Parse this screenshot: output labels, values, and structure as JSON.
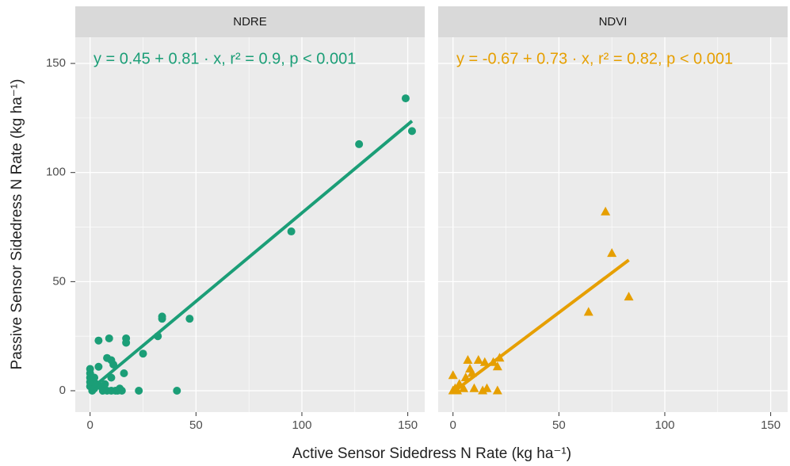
{
  "chart_data": {
    "type": "scatter",
    "x_label": "Active Sensor Sidedress N Rate (kg ha⁻¹)",
    "y_label": "Passive Sensor Sidedress N Rate (kg ha⁻¹)",
    "xlim": [
      -7,
      158
    ],
    "ylim": [
      -9.8,
      162
    ],
    "xticks": [
      0,
      50,
      100,
      150
    ],
    "yticks": [
      0,
      50,
      100,
      150
    ],
    "minor_xticks": [
      25,
      75,
      125
    ],
    "minor_yticks": [
      25,
      75,
      125
    ],
    "grid": true,
    "facets": [
      {
        "title": "NDRE",
        "color": "#1b9e77",
        "marker": "circle",
        "annotation": "y = 0.45 + 0.81 · x,  r² = 0.9, p < 0.001",
        "x": [
          1,
          0,
          0,
          0,
          0,
          0,
          2,
          3,
          4,
          4,
          6,
          8,
          8,
          9,
          10,
          10,
          10,
          12,
          13,
          14,
          15,
          16,
          17,
          17,
          23,
          25,
          32,
          34,
          34,
          41,
          47,
          95,
          127,
          149,
          152,
          2,
          5,
          7,
          11
        ],
        "y": [
          0,
          2,
          4,
          6,
          8,
          10,
          1,
          3,
          11,
          23,
          0,
          0,
          15,
          24,
          0,
          6,
          14,
          0,
          0,
          1,
          0,
          8,
          22,
          24,
          0,
          17,
          25,
          33,
          34,
          0,
          33,
          73,
          113,
          134,
          119,
          6,
          2,
          3,
          12
        ],
        "fit_x": [
          0,
          152
        ],
        "fit_y": [
          0.45,
          123.6
        ]
      },
      {
        "title": "NDVI",
        "color": "#e69f00",
        "marker": "triangle",
        "annotation": "y = -0.67 + 0.73 · x,  r² = 0.82, p < 0.001",
        "x": [
          0,
          0,
          1,
          2,
          3,
          5,
          6,
          7,
          8,
          9,
          10,
          12,
          14,
          15,
          16,
          19,
          21,
          21,
          22,
          64,
          72,
          75,
          83
        ],
        "y": [
          0,
          7,
          1,
          0,
          3,
          1,
          6,
          14,
          10,
          8,
          1,
          14,
          0,
          13,
          1,
          13,
          0,
          11,
          15,
          36,
          82,
          63,
          43
        ],
        "fit_x": [
          0,
          83
        ],
        "fit_y": [
          -0.67,
          59.9
        ]
      }
    ]
  }
}
